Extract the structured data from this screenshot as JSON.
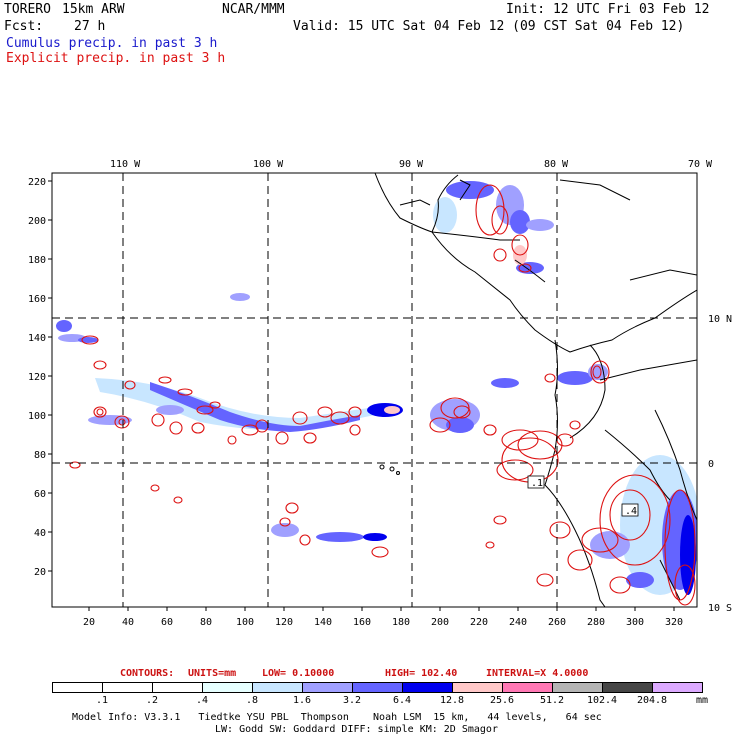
{
  "header": {
    "model": "TORERO",
    "resolution": "15km ARW",
    "org": "NCAR/MMM",
    "init": "Init: 12 UTC Fri 03 Feb 12",
    "fcst_label": "Fcst:",
    "fcst_value": "27 h",
    "valid": "Valid: 15 UTC Sat 04 Feb 12 (09 CST Sat 04 Feb 12)",
    "line_cumulus": "Cumulus precip. in past 3 h",
    "line_explicit": "Explicit precip. in past 3 h"
  },
  "map": {
    "lon_labels": [
      "110 W",
      "100 W",
      "90 W",
      "80 W",
      "70 W"
    ],
    "lat_labels": [
      "10 N",
      "0",
      "10 S"
    ],
    "y_ticks": [
      "220",
      "200",
      "180",
      "160",
      "140",
      "120",
      "100",
      "80",
      "60",
      "40",
      "20"
    ],
    "x_ticks": [
      "20",
      "40",
      "60",
      "80",
      "100",
      "120",
      "140",
      "160",
      "180",
      "200",
      "220",
      "240",
      "260",
      "280",
      "300",
      "320"
    ],
    "contour_labels": [
      ".1",
      ".4"
    ]
  },
  "contours_caption": {
    "label": "CONTOURS:",
    "units": "UNITS=mm",
    "low": "LOW= 0.10000",
    "high": "HIGH= 102.40",
    "interval": "INTERVAL=X 4.0000"
  },
  "colorbar": {
    "units": "mm",
    "labels": [
      ".1",
      ".2",
      ".4",
      ".8",
      "1.6",
      "3.2",
      "6.4",
      "12.8",
      "25.6",
      "51.2",
      "102.4",
      "204.8"
    ],
    "colors": [
      "#ffffff",
      "#ffffff",
      "#ffffff",
      "#e6ffff",
      "#c8e6ff",
      "#a0a0ff",
      "#6464ff",
      "#0000ee",
      "#ffc8c8",
      "#ff78b4",
      "#b4b4b4",
      "#464646",
      "#dcaaff"
    ]
  },
  "footer": {
    "line1": "Model Info: V3.3.1   Tiedtke YSU PBL  Thompson    Noah LSM  15 km,   44 levels,   64 sec",
    "line2": "LW: Godd SW: Goddard DIFF: simple KM: 2D Smagor"
  }
}
